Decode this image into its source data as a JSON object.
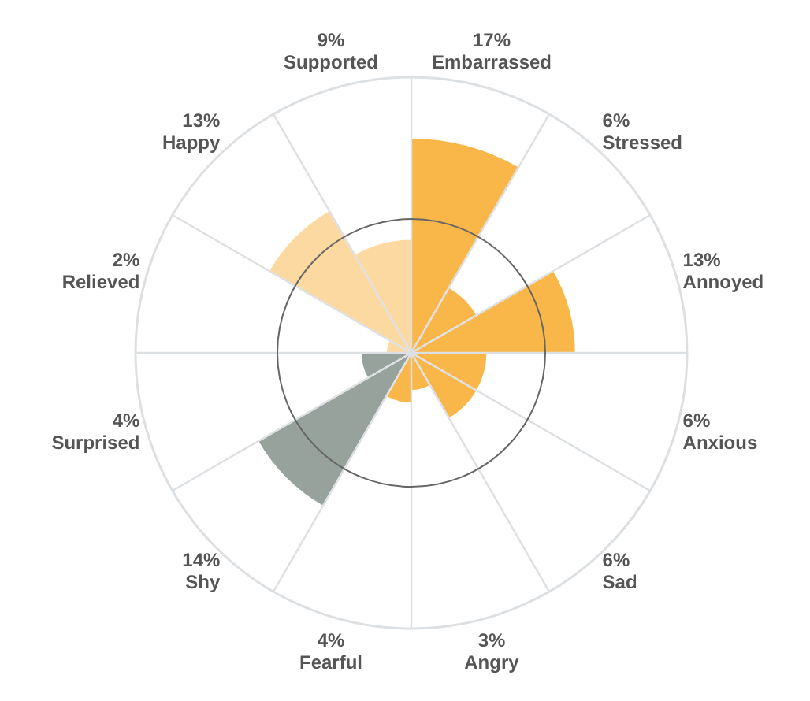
{
  "chart_data": {
    "type": "other",
    "categories": [
      "Embarrassed",
      "Stressed",
      "Annoyed",
      "Anxious",
      "Sad",
      "Angry",
      "Fearful",
      "Shy",
      "Surprised",
      "Relieved",
      "Happy",
      "Supported"
    ],
    "values": [
      17,
      6,
      13,
      6,
      6,
      3,
      4,
      14,
      4,
      2,
      13,
      9
    ],
    "value_labels": [
      "17%",
      "6%",
      "13%",
      "6%",
      "6%",
      "3%",
      "4%",
      "14%",
      "4%",
      "2%",
      "13%",
      "9%"
    ],
    "colors": [
      "#f9b74a",
      "#f9b74a",
      "#f9b74a",
      "#f9b74a",
      "#f9b74a",
      "#f9b74a",
      "#f9b74a",
      "#97a29c",
      "#97a29c",
      "#fcd9a0",
      "#fcd9a0",
      "#fcd9a0"
    ]
  }
}
